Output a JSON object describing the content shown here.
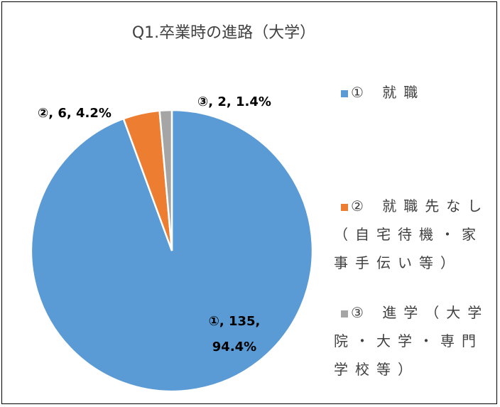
{
  "chart_data": {
    "type": "pie",
    "title": "Q1.卒業時の進路（大学）",
    "categories": [
      "① 就職",
      "② 就職先なし（自宅待機・家事手伝い等）",
      "③ 進学（大学院・大学・専門学校等）"
    ],
    "values": [
      135,
      6,
      2
    ],
    "value_labels": [
      "①, 135, 94.4%",
      "②, 6, 4.2%",
      "③, 2, 1.4%"
    ],
    "colors": [
      "#5b9bd5",
      "#ed7d31",
      "#a5a5a5"
    ],
    "legend": "right"
  }
}
